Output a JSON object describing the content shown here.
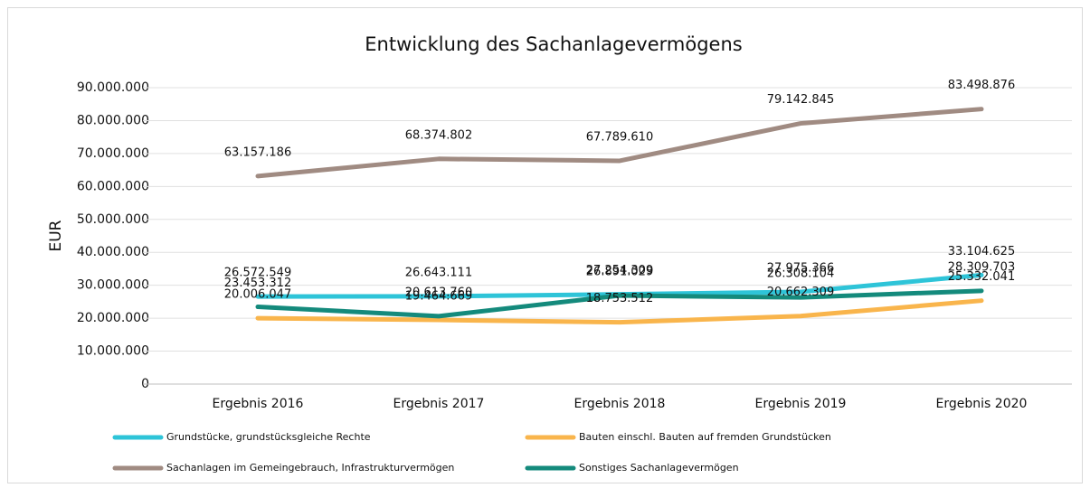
{
  "chart_data": {
    "type": "line",
    "title": "Entwicklung des Sachanlagevermögens",
    "y_label": "EUR",
    "categories": [
      "Ergebnis 2016",
      "Ergebnis 2017",
      "Ergebnis 2018",
      "Ergebnis 2019",
      "Ergebnis 2020"
    ],
    "ylim": [
      0,
      90000000
    ],
    "yticks": [
      0,
      {
        "value": 10000000,
        "label": "10.000.000"
      },
      {
        "value": 20000000,
        "label": "20.000.000"
      },
      {
        "value": 30000000,
        "label": "30.000.000"
      },
      {
        "value": 40000000,
        "label": "40.000.000"
      },
      {
        "value": 50000000,
        "label": "50.000.000"
      },
      {
        "value": 60000000,
        "label": "60.000.000"
      },
      {
        "value": 70000000,
        "label": "70.000.000"
      },
      {
        "value": 80000000,
        "label": "80.000.000"
      },
      {
        "value": 90000000,
        "label": "90.000.000"
      }
    ],
    "grid": true,
    "legend": "bottom",
    "series": [
      {
        "name": "Grundstücke, grundstücksgleiche Rechte",
        "color": "#2ec4d8",
        "values": [
          26572549,
          26643111,
          27254309,
          27975366,
          33104625
        ],
        "value_labels": [
          "26.572.549",
          "26.643.111",
          "27.254.309",
          "27.975.366",
          "33.104.625"
        ]
      },
      {
        "name": "Bauten einschl. Bauten auf fremden Grundstücken",
        "color": "#f9b54c",
        "values": [
          20006047,
          19464669,
          18753512,
          20662309,
          25332041
        ],
        "value_labels": [
          "20.006.047",
          "19.464.669",
          "18.753.512",
          "20.662.309",
          "25.332.041"
        ]
      },
      {
        "name": "Sachanlagen im Gemeingebrauch, Infrastrukturvermögen",
        "color": "#a08b82",
        "values": [
          63157186,
          68374802,
          67789610,
          79142845,
          83498876
        ],
        "value_labels": [
          "63.157.186",
          "68.374.802",
          "67.789.610",
          "79.142.845",
          "83.498.876"
        ]
      },
      {
        "name": "Sonstiges Sachanlagevermögen",
        "color": "#148a7c",
        "values": [
          23453312,
          20613760,
          26891029,
          26308104,
          28309703
        ],
        "value_labels": [
          "23.453.312",
          "20.613.760",
          "26.891.029",
          "26.308.104",
          "28.309.703"
        ]
      }
    ]
  }
}
